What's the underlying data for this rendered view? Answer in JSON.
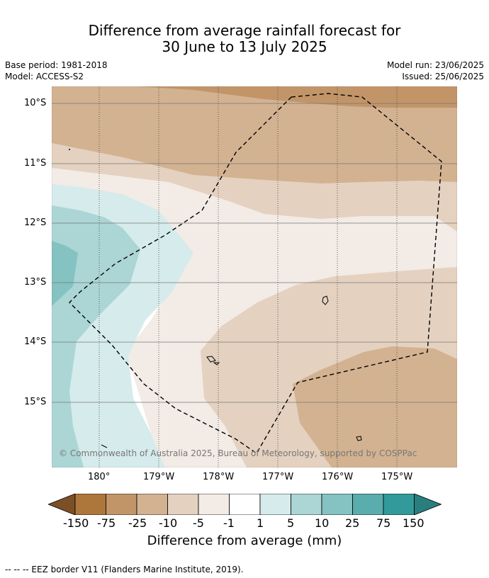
{
  "header": {
    "title_line1": "Difference from average rainfall forecast for",
    "title_line2": "30 June to 13 July 2025",
    "base_period": "Base period: 1981-2018",
    "model": "Model: ACCESS-S2",
    "model_run": "Model run: 23/06/2025",
    "issued": "Issued: 25/06/2025"
  },
  "map": {
    "lat_labels": [
      "10°S",
      "11°S",
      "12°S",
      "13°S",
      "14°S",
      "15°S"
    ],
    "lon_labels": [
      "180°",
      "179°W",
      "178°W",
      "177°W",
      "176°W",
      "175°W"
    ],
    "copyright": "© Commonwealth of Australia 2025, Bureau of Meteorology, supported by COSPPac"
  },
  "colorbar": {
    "labels": [
      "-150",
      "-75",
      "-25",
      "-10",
      "-5",
      "-1",
      "1",
      "5",
      "10",
      "25",
      "75",
      "150"
    ],
    "colors": [
      "#7d4f26",
      "#ad773c",
      "#c29569",
      "#d3b291",
      "#e4d1c0",
      "#f3ebe5",
      "#ffffff",
      "#d6ebeb",
      "#acd5d5",
      "#85c2c2",
      "#5aadad",
      "#329a9a",
      "#2a7e7e"
    ],
    "title": "Difference from average (mm)"
  },
  "legend": {
    "eez": "--  --  -- EEZ border V11 (Flanders Marine Institute, 2019)."
  }
}
